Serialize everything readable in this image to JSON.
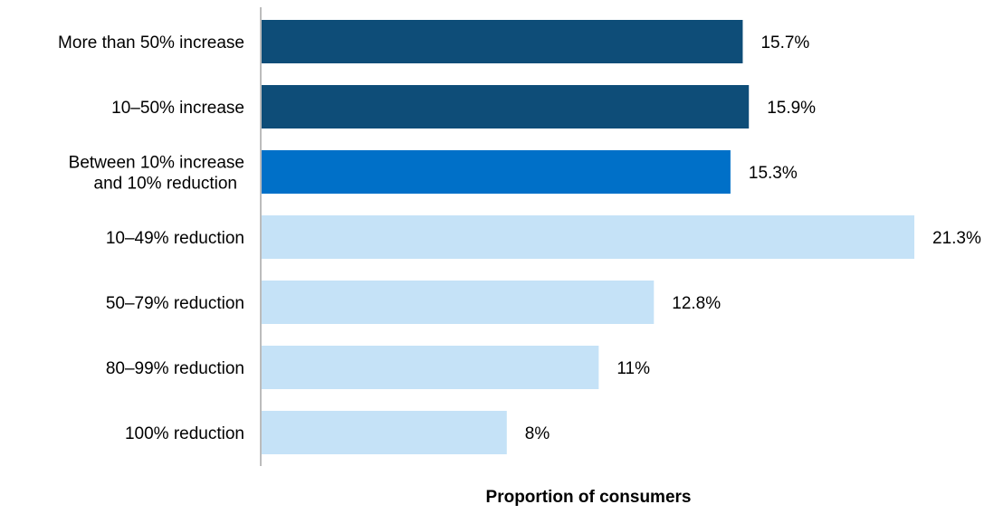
{
  "chart_data": {
    "type": "bar",
    "orientation": "horizontal",
    "categories": [
      "More than 50% increase",
      "10–50% increase",
      "Between 10% increase and 10% reduction",
      "10–49% reduction",
      "50–79% reduction",
      "80–99% reduction",
      "100% reduction"
    ],
    "category_lines": [
      [
        "More than 50% increase"
      ],
      [
        "10–50% increase"
      ],
      [
        "Between 10% increase",
        "and 10% reduction"
      ],
      [
        "10–49% reduction"
      ],
      [
        "50–79% reduction"
      ],
      [
        "80–99% reduction"
      ],
      [
        "100% reduction"
      ]
    ],
    "values": [
      15.7,
      15.9,
      15.3,
      21.3,
      12.8,
      11,
      8
    ],
    "value_labels": [
      "15.7%",
      "15.9%",
      "15.3%",
      "21.3%",
      "12.8%",
      "11%",
      "8%"
    ],
    "bar_colors": [
      "#0e4d78",
      "#0e4d78",
      "#0070c8",
      "#c5e2f7",
      "#c5e2f7",
      "#c5e2f7",
      "#c5e2f7"
    ],
    "axis_color": "#a6a6a6",
    "xlabel": "Proportion of consumers",
    "ylabel": "",
    "title": "",
    "xlim": [
      0,
      23
    ],
    "grid": false,
    "legend": "none"
  }
}
